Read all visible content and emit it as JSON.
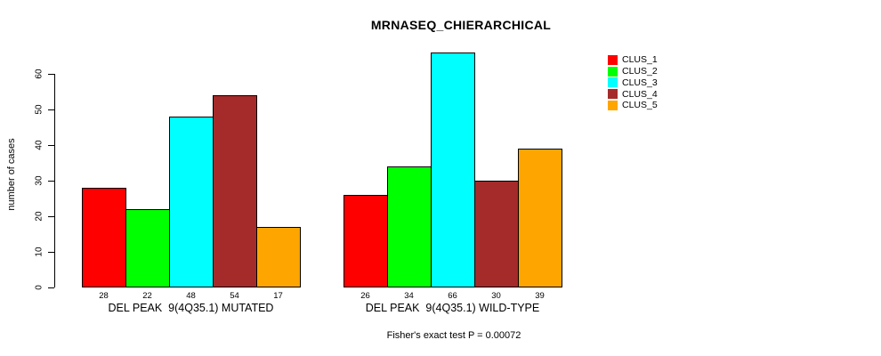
{
  "chart_data": {
    "type": "bar",
    "title": "MRNASEQ_CHIERARCHICAL",
    "ylabel": "number of cases",
    "xlabel": "",
    "annotation": "Fisher's exact test P = 0.00072",
    "categories": [
      "DEL PEAK  9(4Q35.1) MUTATED",
      "DEL PEAK  9(4Q35.1) WILD-TYPE"
    ],
    "series": [
      {
        "name": "CLUS_1",
        "color": "#ff0000",
        "values": [
          28,
          26
        ]
      },
      {
        "name": "CLUS_2",
        "color": "#00ff00",
        "values": [
          22,
          34
        ]
      },
      {
        "name": "CLUS_3",
        "color": "#00ffff",
        "values": [
          48,
          66
        ]
      },
      {
        "name": "CLUS_4",
        "color": "#a52a2a",
        "values": [
          54,
          30
        ]
      },
      {
        "name": "CLUS_5",
        "color": "#ffa500",
        "values": [
          17,
          39
        ]
      }
    ],
    "yticks": [
      0,
      10,
      20,
      30,
      40,
      50,
      60
    ],
    "ylim": [
      0,
      66
    ],
    "grid": false,
    "bar_value_labels": true,
    "legend_position": "top-right",
    "axis_color": "#000000",
    "bar_border_color": "#000000",
    "background_color": "#ffffff"
  }
}
